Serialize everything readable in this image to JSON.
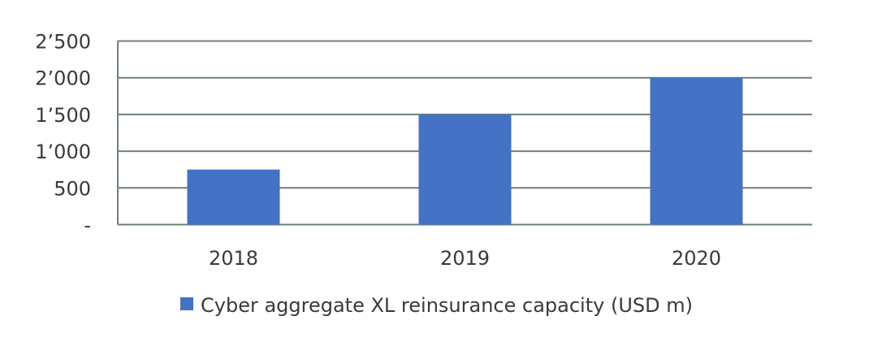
{
  "chart_data": {
    "type": "bar",
    "title": "",
    "xlabel": "",
    "ylabel": "",
    "categories": [
      "2018",
      "2019",
      "2020"
    ],
    "series": [
      {
        "name": "Cyber aggregate XL reinsurance capacity (USD m)",
        "values": [
          750,
          1500,
          2000
        ],
        "color": "#4472C4"
      }
    ],
    "ylim": [
      0,
      2500
    ],
    "yticks": [
      0,
      500,
      1000,
      1500,
      2000,
      2500
    ],
    "ytick_labels": [
      "-",
      "500",
      "1’000",
      "1’500",
      "2’000",
      "2’500"
    ],
    "grid": true,
    "legend": "bottom-center",
    "grid_color": "#6E8078"
  }
}
